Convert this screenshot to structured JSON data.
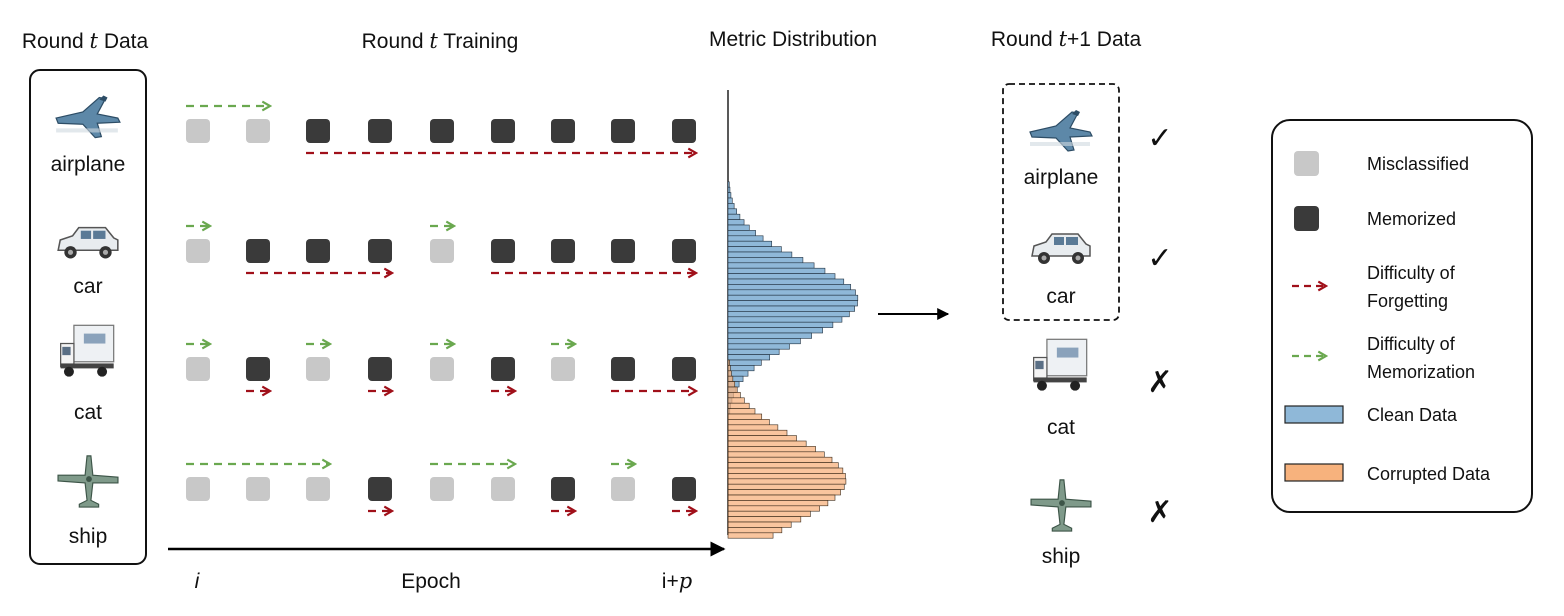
{
  "headers": {
    "round_data": {
      "pre": "Round ",
      "var": "t",
      "post": " Data"
    },
    "training": {
      "pre": "Round ",
      "var": "t",
      "post": " Training"
    },
    "metric": "Metric Distribution",
    "next_data": {
      "pre": "Round ",
      "var": "t",
      "post": "+1 Data"
    }
  },
  "samples": [
    {
      "label": "airplane",
      "icon": "airplane-icon",
      "states": [
        "m",
        "m",
        "k",
        "k",
        "k",
        "k",
        "k",
        "k",
        "k"
      ],
      "green": [
        [
          0,
          1
        ]
      ],
      "red": [
        [
          2,
          8
        ]
      ]
    },
    {
      "label": "car",
      "icon": "car-icon",
      "states": [
        "m",
        "k",
        "k",
        "k",
        "m",
        "k",
        "k",
        "k",
        "k"
      ],
      "green": [
        [
          0,
          0
        ],
        [
          4,
          4
        ]
      ],
      "red": [
        [
          1,
          3
        ],
        [
          5,
          8
        ]
      ]
    },
    {
      "label": "cat",
      "icon": "truck-icon",
      "states": [
        "m",
        "k",
        "m",
        "k",
        "m",
        "k",
        "m",
        "k",
        "k"
      ],
      "green": [
        [
          0,
          0
        ],
        [
          2,
          2
        ],
        [
          4,
          4
        ],
        [
          6,
          6
        ]
      ],
      "red": [
        [
          1,
          1
        ],
        [
          3,
          3
        ],
        [
          5,
          5
        ],
        [
          7,
          8
        ]
      ]
    },
    {
      "label": "ship",
      "icon": "plane-icon",
      "states": [
        "m",
        "m",
        "m",
        "k",
        "m",
        "m",
        "k",
        "m",
        "k"
      ],
      "green": [
        [
          0,
          2
        ],
        [
          4,
          5
        ],
        [
          7,
          7
        ]
      ],
      "red": [
        [
          3,
          3
        ],
        [
          6,
          6
        ],
        [
          8,
          8
        ]
      ]
    }
  ],
  "axis": {
    "start": "i",
    "label": "Epoch",
    "end_pre": "i+",
    "end_var": "p"
  },
  "next_round": [
    {
      "label": "airplane",
      "icon": "airplane-icon",
      "kept": true,
      "mark": "✓"
    },
    {
      "label": "car",
      "icon": "car-icon",
      "kept": true,
      "mark": "✓"
    },
    {
      "label": "cat",
      "icon": "truck-icon",
      "kept": false,
      "mark": "✗"
    },
    {
      "label": "ship",
      "icon": "plane-icon",
      "kept": false,
      "mark": "✗"
    }
  ],
  "legend": {
    "misclassified": "Misclassified",
    "memorized": "Memorized",
    "forgetting": [
      "Difficulty of",
      "Forgetting"
    ],
    "memorization": [
      "Difficulty of",
      "Memorization"
    ],
    "clean": "Clean Data",
    "corrupted": "Corrupted Data"
  },
  "colors": {
    "misclassified": "#c8c8c8",
    "memorized": "#3a3a3a",
    "forgetting_arrow": "#a0101a",
    "memorization_arrow": "#6aa84f",
    "clean": "#8fb8d8",
    "corrupted": "#f7b27d"
  },
  "distribution": {
    "clean": {
      "mean": 210,
      "std": 38,
      "peak": 130
    },
    "corrupted": {
      "mean": 390,
      "std": 40,
      "peak": 118
    }
  }
}
